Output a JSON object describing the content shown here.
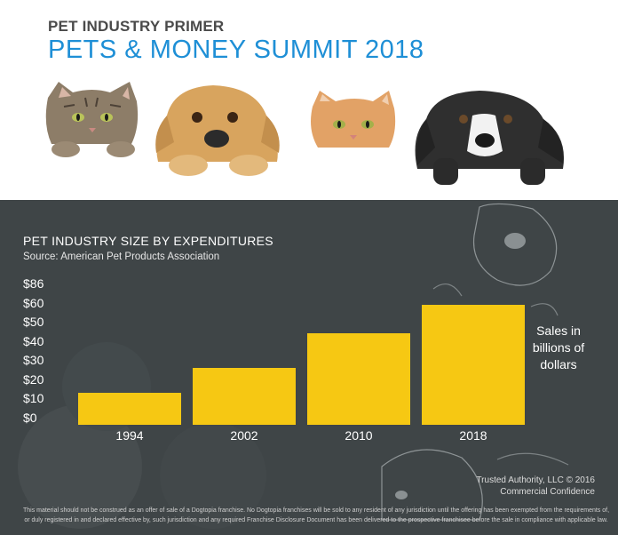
{
  "header": {
    "kicker": "PET INDUSTRY PRIMER",
    "headline": "PETS & MONEY SUMMIT 2018"
  },
  "chart_data": {
    "type": "bar",
    "title": "PET INDUSTRY SIZE BY EXPENDITURES",
    "subtitle": "Source: American Pet Products Association",
    "categories": [
      "1994",
      "2002",
      "2010",
      "2018"
    ],
    "values": [
      17,
      30,
      48,
      63
    ],
    "ylabel": "Sales in billions of dollars",
    "ylim": [
      0,
      86
    ],
    "yticks": [
      0,
      10,
      20,
      30,
      40,
      50,
      60,
      86
    ],
    "ytick_labels": [
      "$0",
      "$10",
      "$20",
      "$30",
      "$40",
      "$50",
      "$60",
      "$86"
    ],
    "bar_color": "#f6c813",
    "grid": false,
    "legend": "none"
  },
  "unit_lines": [
    "Sales in",
    "billions of",
    "dollars"
  ],
  "footer": {
    "credit_line1": "Trusted Authority, LLC © 2016",
    "credit_line2": "Commercial Confidence",
    "disclaimer": "This material should not be construed as an offer of sale of a Dogtopia franchise. No Dogtopia franchises will be sold to any resident of any jurisdiction until the offering has been exempted from the requirements of, or duly registered in and declared effective by, such jurisdiction and any required Franchise Disclosure Document has been delivered to the prospective franchisee before the sale in compliance with applicable law."
  },
  "colors": {
    "headline_blue": "#1e8fd6",
    "panel_bg": "#3f4547",
    "bar_yellow": "#f6c813"
  }
}
